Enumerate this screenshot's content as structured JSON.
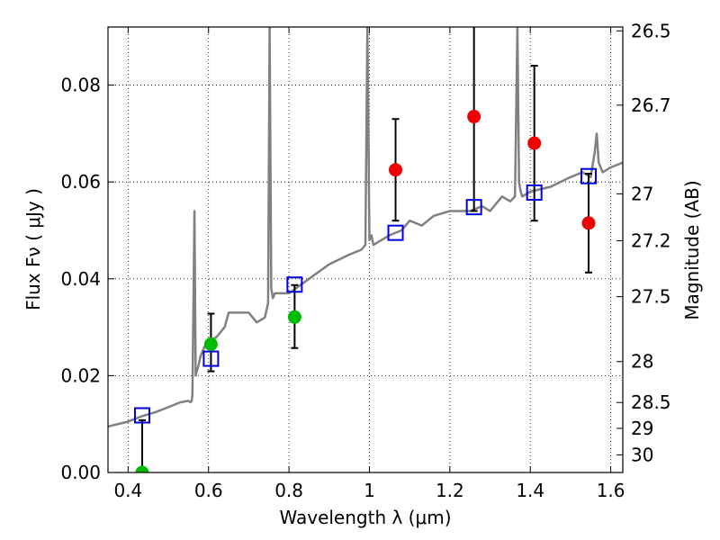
{
  "chart_data": {
    "type": "scatter",
    "title": "",
    "xlabel": "Wavelength  λ (μm)",
    "ylabel": "Flux  Fν  ( μJy )",
    "ylabel_right": "Magnitude (AB)",
    "xlim": [
      0.35,
      1.63
    ],
    "ylim": [
      0.0,
      0.092
    ],
    "grid": true,
    "x_ticks": [
      0.4,
      0.6,
      0.8,
      1.0,
      1.2,
      1.4,
      1.6
    ],
    "x_tick_labels": [
      "0.4",
      "0.6",
      "0.8",
      "1",
      "1.2",
      "1.4",
      "1.6"
    ],
    "y_ticks": [
      0.0,
      0.02,
      0.04,
      0.06,
      0.08
    ],
    "y_tick_labels": [
      "0.00",
      "0.02",
      "0.04",
      "0.06",
      "0.08"
    ],
    "right_ticks": [
      {
        "label": "26.5",
        "mag": 26.5
      },
      {
        "label": "26.7",
        "mag": 26.7
      },
      {
        "label": "27",
        "mag": 27.0
      },
      {
        "label": "27.2",
        "mag": 27.2
      },
      {
        "label": "27.5",
        "mag": 27.5
      },
      {
        "label": "28",
        "mag": 28.0
      },
      {
        "label": "28.5",
        "mag": 28.5
      },
      {
        "label": "29",
        "mag": 29.0
      },
      {
        "label": "30",
        "mag": 30.0
      }
    ],
    "series": [
      {
        "name": "model spectrum",
        "kind": "line",
        "color": "#808080",
        "x": [
          0.35,
          0.4,
          0.43,
          0.47,
          0.5,
          0.53,
          0.55,
          0.555,
          0.558,
          0.56,
          0.565,
          0.568,
          0.571,
          0.575,
          0.58,
          0.59,
          0.6,
          0.62,
          0.64,
          0.65,
          0.67,
          0.7,
          0.72,
          0.74,
          0.748,
          0.752,
          0.756,
          0.76,
          0.765,
          0.78,
          0.8,
          0.85,
          0.9,
          0.95,
          0.98,
          0.99,
          0.995,
          1.0,
          1.005,
          1.01,
          1.03,
          1.05,
          1.08,
          1.1,
          1.13,
          1.16,
          1.2,
          1.25,
          1.28,
          1.3,
          1.33,
          1.35,
          1.362,
          1.368,
          1.372,
          1.376,
          1.38,
          1.4,
          1.45,
          1.5,
          1.53,
          1.55,
          1.56,
          1.565,
          1.57,
          1.58,
          1.6,
          1.63
        ],
        "y": [
          0.0095,
          0.0105,
          0.0115,
          0.0125,
          0.0135,
          0.0145,
          0.0148,
          0.0145,
          0.0148,
          0.016,
          0.054,
          0.02,
          0.021,
          0.022,
          0.024,
          0.026,
          0.027,
          0.028,
          0.03,
          0.033,
          0.033,
          0.033,
          0.031,
          0.032,
          0.035,
          0.092,
          0.038,
          0.036,
          0.037,
          0.037,
          0.037,
          0.04,
          0.043,
          0.045,
          0.046,
          0.047,
          0.092,
          0.048,
          0.049,
          0.047,
          0.048,
          0.049,
          0.05,
          0.052,
          0.051,
          0.053,
          0.054,
          0.054,
          0.055,
          0.054,
          0.057,
          0.056,
          0.057,
          0.092,
          0.06,
          0.058,
          0.057,
          0.058,
          0.059,
          0.061,
          0.062,
          0.061,
          0.066,
          0.07,
          0.064,
          0.062,
          0.063,
          0.064
        ]
      },
      {
        "name": "model photometry",
        "kind": "open-square",
        "color": "#0000dd",
        "x": [
          0.435,
          0.606,
          0.814,
          1.065,
          1.26,
          1.41,
          1.545
        ],
        "y": [
          0.0118,
          0.0235,
          0.0388,
          0.0495,
          0.0548,
          0.0578,
          0.0612
        ]
      },
      {
        "name": "observed (green)",
        "kind": "filled-circle",
        "color": "#00bb00",
        "x": [
          0.435,
          0.606,
          0.814
        ],
        "y": [
          0.0,
          0.0265,
          0.0321
        ],
        "yerr_low": [
          0.0,
          0.0056,
          0.0064
        ],
        "yerr_high": [
          0.0108,
          0.0063,
          0.0066
        ]
      },
      {
        "name": "observed (red)",
        "kind": "filled-circle",
        "color": "#ee0000",
        "x": [
          1.065,
          1.26,
          1.41,
          1.545
        ],
        "y": [
          0.0625,
          0.0735,
          0.068,
          0.0515
        ],
        "yerr_low": [
          0.0105,
          0.0195,
          0.016,
          0.0102
        ],
        "yerr_high": [
          0.0105,
          0.0195,
          0.016,
          0.0102
        ]
      }
    ]
  }
}
